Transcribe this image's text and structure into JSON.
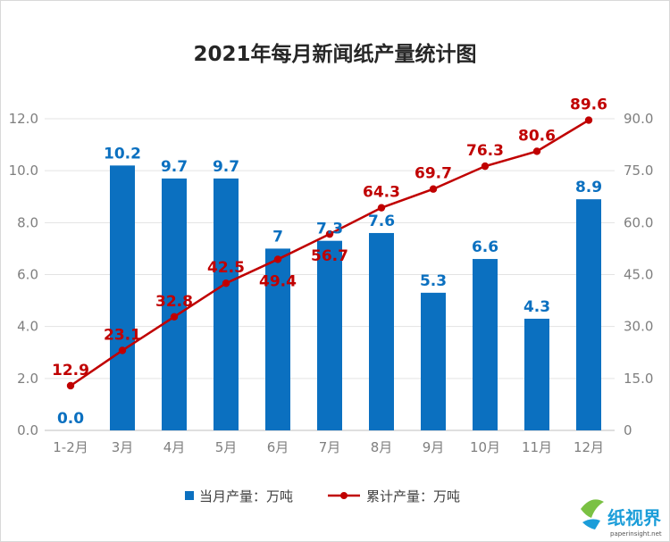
{
  "chart_data": {
    "type": "bar",
    "title": "2021年每月新闻纸产量统计图",
    "categories": [
      "1-2月",
      "3月",
      "4月",
      "5月",
      "6月",
      "7月",
      "8月",
      "9月",
      "10月",
      "11月",
      "12月"
    ],
    "series": [
      {
        "name": "当月产量：万吨",
        "type": "bar",
        "axis": "left",
        "color": "#0b70c0",
        "values": [
          0.0,
          10.2,
          9.7,
          9.7,
          7.0,
          7.3,
          7.6,
          5.3,
          6.6,
          4.3,
          8.9
        ],
        "labels": [
          "0.0",
          "10.2",
          "9.7",
          "9.7",
          "7",
          "7.3",
          "7.6",
          "5.3",
          "6.6",
          "4.3",
          "8.9"
        ]
      },
      {
        "name": "累计产量：万吨",
        "type": "line",
        "axis": "right",
        "color": "#c00000",
        "values": [
          12.9,
          23.1,
          32.8,
          42.5,
          49.4,
          56.7,
          64.3,
          69.7,
          76.3,
          80.6,
          89.6
        ],
        "labels": [
          "12.9",
          "23.1",
          "32.8",
          "42.5",
          "49.4",
          "56.7",
          "64.3",
          "69.7",
          "76.3",
          "80.6",
          "89.6"
        ]
      }
    ],
    "y_left": {
      "range": [
        0,
        12
      ],
      "ticks": [
        "0.0",
        "2.0",
        "4.0",
        "6.0",
        "8.0",
        "10.0",
        "12.0"
      ]
    },
    "y_right": {
      "range": [
        0,
        90
      ],
      "ticks": [
        "0",
        "15.0",
        "30.0",
        "45.0",
        "60.0",
        "75.0",
        "90.0"
      ]
    },
    "grid": true,
    "legend_position": "bottom"
  },
  "watermark": {
    "text": "纸视界",
    "url": "paperinsight.net"
  }
}
